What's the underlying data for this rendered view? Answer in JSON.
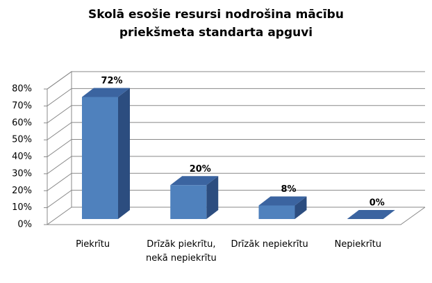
{
  "chart_data": {
    "type": "bar3d",
    "title": "Skolā esošie resursi nodrošina mācību priekšmeta standarta apguvi",
    "categories": [
      "Piekrītu",
      "Drīzāk piekrītu, nekā nepiekrītu",
      "Drīzāk nepiekrītu",
      "Nepiekrītu"
    ],
    "values": [
      72,
      20,
      8,
      0
    ],
    "value_labels": [
      "72%",
      "20%",
      "8%",
      "0%"
    ],
    "color": "#4f81bd",
    "ylim": [
      0,
      80
    ],
    "yticks": [
      {
        "value": 0,
        "label": "0%"
      },
      {
        "value": 10,
        "label": "10%"
      },
      {
        "value": 20,
        "label": "20%"
      },
      {
        "value": 30,
        "label": "30%"
      },
      {
        "value": 40,
        "label": "40%"
      },
      {
        "value": 50,
        "label": "50%"
      },
      {
        "value": 60,
        "label": "60%"
      },
      {
        "value": 70,
        "label": "70%"
      },
      {
        "value": 80,
        "label": "80%"
      }
    ],
    "grid": true
  }
}
